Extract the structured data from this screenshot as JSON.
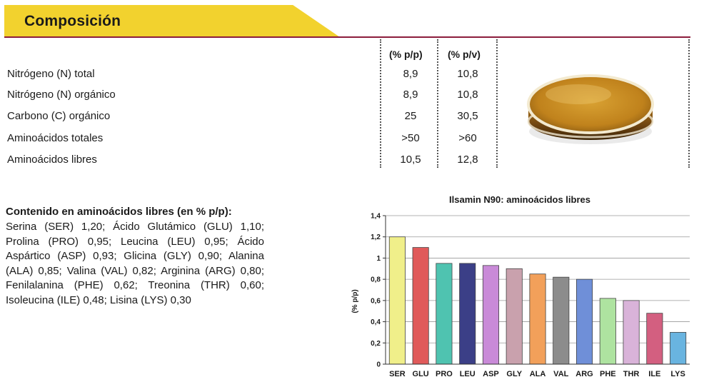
{
  "header": {
    "title": "Composición",
    "accent": "#f2d22e",
    "rule_color": "#8c1d3c"
  },
  "composition_table": {
    "columns": [
      "(% p/p)",
      "(% p/v)"
    ],
    "rows": [
      {
        "label": "Nitrógeno (N) total",
        "pp": "8,9",
        "pv": "10,8"
      },
      {
        "label": "Nitrógeno (N) orgánico",
        "pp": "8,9",
        "pv": "10,8"
      },
      {
        "label": "Carbono (C) orgánico",
        "pp": "25",
        "pv": "30,5"
      },
      {
        "label": "Aminoácidos totales",
        "pp": ">50",
        "pv": ">60"
      },
      {
        "label": "Aminoácidos libres",
        "pp": "10,5",
        "pv": "12,8"
      }
    ]
  },
  "product_image": {
    "icon": "petri-dish-icon"
  },
  "amino_text": {
    "heading": "Contenido en aminoácidos libres (en % p/p):",
    "body": "Serina (SER) 1,20; Ácido Glutámico (GLU) 1,10; Prolina (PRO) 0,95; Leucina (LEU) 0,95; Ácido Aspártico (ASP) 0,93; Glicina (GLY) 0,90; Alanina (ALA) 0,85; Valina (VAL) 0,82; Arginina (ARG) 0,80; Fenilalanina (PHE) 0,62; Treonina (THR) 0,60; Isoleucina (ILE) 0,48; Lisina (LYS) 0,30"
  },
  "chart_data": {
    "type": "bar",
    "title": "Ilsamin N90: aminoácidos libres",
    "xlabel": "",
    "ylabel": "(% p/p)",
    "ylim": [
      0,
      1.4
    ],
    "yticks": [
      "0",
      "0,2",
      "0,4",
      "0,6",
      "0,8",
      "1",
      "1,2",
      "1,4"
    ],
    "grid": true,
    "categories": [
      "SER",
      "GLU",
      "PRO",
      "LEU",
      "ASP",
      "GLY",
      "ALA",
      "VAL",
      "ARG",
      "PHE",
      "THR",
      "ILE",
      "LYS"
    ],
    "values": [
      1.2,
      1.1,
      0.95,
      0.95,
      0.93,
      0.9,
      0.85,
      0.82,
      0.8,
      0.62,
      0.6,
      0.48,
      0.3
    ],
    "colors": [
      "#f0ef8a",
      "#e05a5a",
      "#4fc3b0",
      "#3b3f87",
      "#c98ad8",
      "#c9a1ad",
      "#f2a05a",
      "#8c8c8c",
      "#6f8fd8",
      "#aee3a0",
      "#d9b3d9",
      "#d35f80",
      "#69b4e0"
    ]
  }
}
